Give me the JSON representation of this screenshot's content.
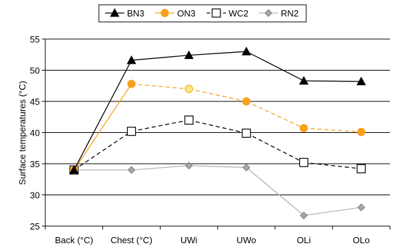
{
  "chart_data": {
    "type": "line",
    "categories": [
      "Back (°C)",
      "Chest (°C)",
      "UWi",
      "UWo",
      "OLi",
      "OLo"
    ],
    "ylabel": "Surface temperatures (°C)",
    "ylim": [
      25,
      55
    ],
    "yticks": [
      25,
      30,
      35,
      40,
      45,
      50,
      55
    ],
    "grid": true,
    "legend_position": "top",
    "series": [
      {
        "name": "BN3",
        "values": [
          34.0,
          51.6,
          52.4,
          53.0,
          48.3,
          48.2
        ],
        "color": "#000000",
        "line_style": "solid",
        "marker": "triangle-filled"
      },
      {
        "name": "ON3",
        "values": [
          34.0,
          47.8,
          47.0,
          45.0,
          40.7,
          40.1
        ],
        "color": "#f7a11c",
        "line_style": "mixed",
        "marker": "circle-filled"
      },
      {
        "name": "WC2",
        "values": [
          34.0,
          40.2,
          42.0,
          39.9,
          35.2,
          34.2
        ],
        "color": "#000000",
        "line_style": "dashed",
        "marker": "square-open"
      },
      {
        "name": "RN2",
        "values": [
          34.0,
          34.0,
          34.7,
          34.4,
          26.7,
          28.0
        ],
        "color": "#b3b3b3",
        "line_style": "solid",
        "marker": "diamond-gray"
      }
    ]
  }
}
